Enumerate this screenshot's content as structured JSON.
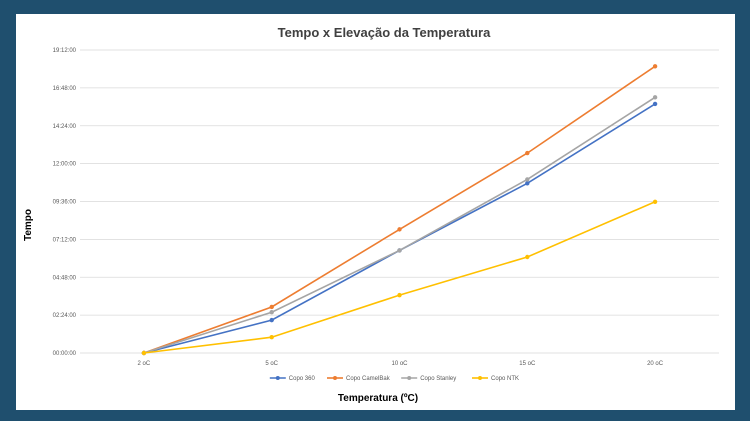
{
  "chart_data": {
    "type": "line",
    "title": "Tempo x Elevação da Temperatura",
    "xlabel": "Temperatura (ºC)",
    "ylabel": "Tempo",
    "categories": [
      "2 oC",
      "5 oC",
      "10 oC",
      "15 oC",
      "20 oC"
    ],
    "y_unit": "minutes",
    "ylim": [
      0,
      1152
    ],
    "y_ticks": [
      0,
      144,
      288,
      432,
      576,
      720,
      864,
      1008,
      1152
    ],
    "y_tick_labels": [
      "00:00:00",
      "02:24:00",
      "04:48:00",
      "07:12:00",
      "09:36:00",
      "12:00:00",
      "14:24:00",
      "16:48:00",
      "19:12:00"
    ],
    "grid": true,
    "legend_position": "bottom",
    "series": [
      {
        "name": "Copo 360",
        "color": "#4472c4",
        "values": [
          0,
          125,
          390,
          645,
          947
        ]
      },
      {
        "name": "Copo CamelBak",
        "color": "#ed7d31",
        "values": [
          0,
          175,
          470,
          760,
          1090
        ]
      },
      {
        "name": "Copo Stanley",
        "color": "#a5a5a5",
        "values": [
          0,
          155,
          390,
          660,
          972
        ]
      },
      {
        "name": "Copo NTK",
        "color": "#ffc000",
        "values": [
          0,
          60,
          220,
          365,
          575
        ]
      }
    ]
  }
}
